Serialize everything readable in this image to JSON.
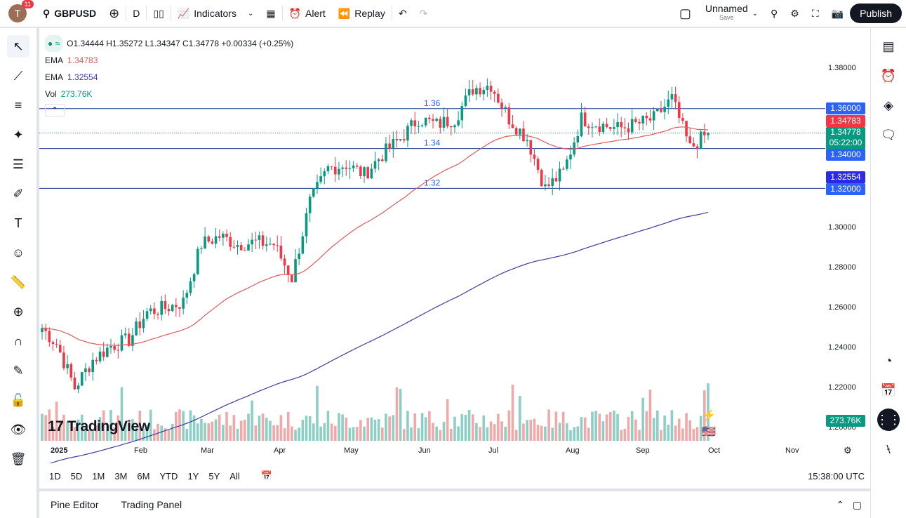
{
  "header": {
    "avatar_initial": "T",
    "notifications": "11",
    "symbol": "GBPUSD",
    "interval": "D",
    "indicators": "Indicators",
    "alert": "Alert",
    "replay": "Replay",
    "layout_name": "Unnamed",
    "save": "Save",
    "publish": "Publish"
  },
  "legend": {
    "ohlc": "O1.34444 H1.35272 L1.34347 C1.34778 +0.00334 (+0.25%)",
    "ema1_label": "EMA",
    "ema1_value": "1.34783",
    "ema2_label": "EMA",
    "ema2_value": "1.32554",
    "vol_label": "Vol",
    "vol_value": "273.76K"
  },
  "price_axis": [
    "1.38000",
    "1.30000",
    "1.28000",
    "1.26000",
    "1.24000",
    "1.22000",
    "1.20000"
  ],
  "price_labels": {
    "level_136": "1.36000",
    "ema_fast": "1.34783",
    "last": "1.34778",
    "countdown": "05:22:00",
    "level_134": "1.34000",
    "ema_slow": "1.32554",
    "level_132": "1.32000",
    "volume": "273.76K"
  },
  "hlines": [
    {
      "label": "1.36",
      "price": 1.36
    },
    {
      "label": "1.34",
      "price": 1.34
    },
    {
      "label": "1.32",
      "price": 1.32
    }
  ],
  "time_axis": [
    "2025",
    "Feb",
    "Mar",
    "Apr",
    "May",
    "Jun",
    "Jul",
    "Aug",
    "Sep",
    "Oct",
    "Nov"
  ],
  "ranges": [
    "1D",
    "5D",
    "1M",
    "3M",
    "6M",
    "YTD",
    "1Y",
    "5Y",
    "All"
  ],
  "clock": "15:38:00 UTC",
  "panel": {
    "pine": "Pine Editor",
    "trading": "Trading Panel"
  },
  "logo": "TradingView",
  "colors": {
    "up": "#089981",
    "down": "#f23645",
    "ema_fast": "#e05a5a",
    "ema_slow": "#3c3ca0",
    "hline": "#2962ff",
    "vol_up": "#8ccfc5",
    "vol_down": "#f0a8a8"
  },
  "chart_data": {
    "type": "candlestick",
    "symbol": "GBPUSD",
    "ylim": [
      1.2,
      1.38
    ],
    "weekly_closes": [
      1.252,
      1.242,
      1.22,
      1.234,
      1.241,
      1.244,
      1.258,
      1.26,
      1.263,
      1.292,
      1.296,
      1.292,
      1.293,
      1.292,
      1.275,
      1.313,
      1.33,
      1.332,
      1.327,
      1.337,
      1.345,
      1.355,
      1.352,
      1.355,
      1.37,
      1.372,
      1.355,
      1.345,
      1.32,
      1.328,
      1.355,
      1.352,
      1.35,
      1.352,
      1.355,
      1.365,
      1.34,
      1.3478
    ],
    "last": {
      "open": 1.34444,
      "high": 1.35272,
      "low": 1.34347,
      "close": 1.34778
    }
  }
}
